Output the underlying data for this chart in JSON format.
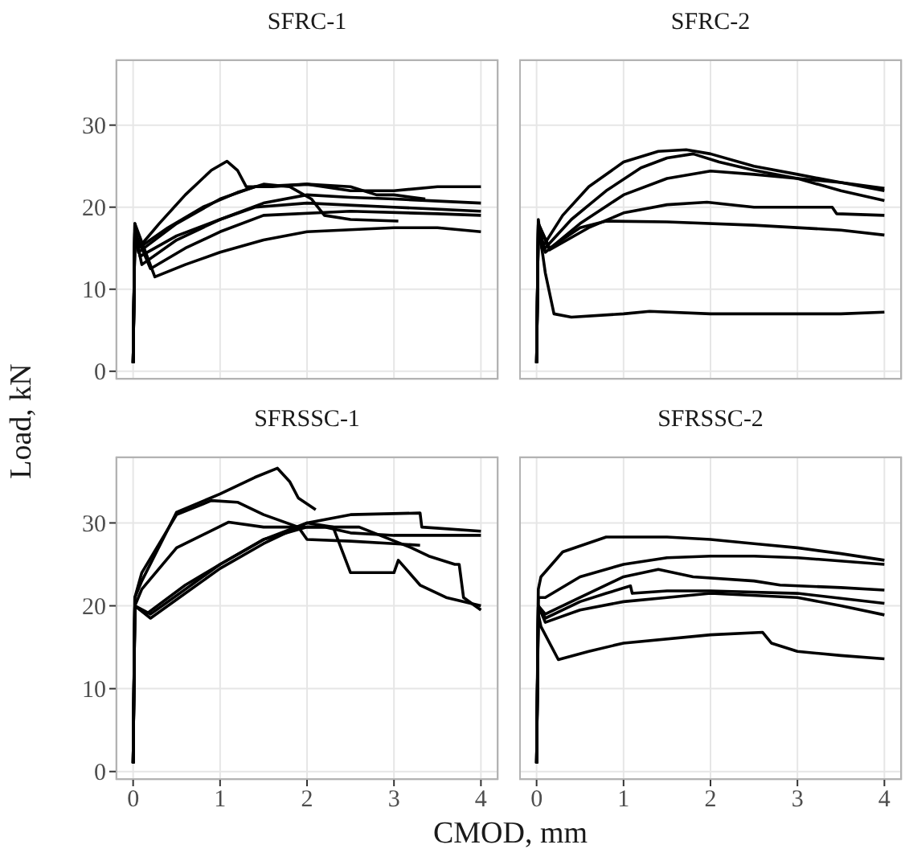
{
  "chart_data": [
    {
      "type": "line",
      "title": "SFRC-1",
      "ylabel": "Load, kN",
      "xlim": [
        -0.2,
        4.2
      ],
      "ylim": [
        -1,
        38
      ],
      "xticks": [
        0,
        1,
        2,
        3,
        4
      ],
      "yticks": [
        0,
        10,
        20,
        30
      ],
      "grid": true,
      "tick_labels": "y",
      "series": [
        {
          "color": "#000000",
          "x": [
            0,
            0.02,
            0.06,
            0.3,
            0.6,
            0.9,
            1.08,
            1.2,
            1.3,
            1.6,
            2.0,
            2.5,
            3.0,
            3.5,
            4.0
          ],
          "values": [
            1,
            18,
            15,
            18,
            21.5,
            24.5,
            25.6,
            24.5,
            22.5,
            22.5,
            22.8,
            22,
            22,
            22.5,
            22.5
          ]
        },
        {
          "color": "#000000",
          "x": [
            0,
            0.02,
            0.06,
            0.4,
            0.8,
            1.2,
            1.5,
            1.8,
            2.05,
            2.2,
            2.5,
            3.05
          ],
          "values": [
            1,
            17.5,
            15,
            17.5,
            20,
            21.8,
            22.8,
            22.5,
            21,
            19,
            18.5,
            18.3
          ]
        },
        {
          "color": "#000000",
          "x": [
            0,
            0.02,
            0.06,
            0.5,
            1.0,
            1.4,
            2.0,
            2.5,
            2.8,
            3.0,
            3.36
          ],
          "values": [
            1,
            17,
            14.5,
            18,
            21,
            22.5,
            22.8,
            22.5,
            21.5,
            21.5,
            21
          ]
        },
        {
          "color": "#000000",
          "x": [
            0,
            0.02,
            0.08,
            0.5,
            1.0,
            1.4,
            2.0,
            3.0,
            4.0
          ],
          "values": [
            1,
            17,
            14,
            16.5,
            18.5,
            20,
            20.5,
            20,
            19.5
          ]
        },
        {
          "color": "#000000",
          "x": [
            0,
            0.02,
            0.2,
            0.6,
            1.0,
            1.5,
            2.5,
            3.5,
            4.0
          ],
          "values": [
            1,
            17,
            12.5,
            15,
            17,
            19,
            19.5,
            19.2,
            19
          ]
        },
        {
          "color": "#000000",
          "x": [
            0,
            0.02,
            0.25,
            0.6,
            1.0,
            1.5,
            2.0,
            3.0,
            3.5,
            4.0
          ],
          "values": [
            1,
            18,
            11.5,
            13,
            14.5,
            16,
            17,
            17.5,
            17.5,
            17
          ]
        },
        {
          "color": "#000000",
          "x": [
            0,
            0.02,
            0.1,
            0.5,
            1.0,
            1.5,
            2.0,
            2.5,
            3.0,
            4.0
          ],
          "values": [
            1,
            17,
            13,
            16,
            18.5,
            20.5,
            21.5,
            21.2,
            21,
            20.5
          ]
        }
      ]
    },
    {
      "type": "line",
      "title": "SFRC-2",
      "xlim": [
        -0.2,
        4.2
      ],
      "ylim": [
        -1,
        38
      ],
      "xticks": [
        0,
        1,
        2,
        3,
        4
      ],
      "yticks": [
        0,
        10,
        20,
        30
      ],
      "grid": true,
      "tick_labels": false,
      "series": [
        {
          "color": "#000000",
          "x": [
            0,
            0.02,
            0.06,
            0.3,
            0.6,
            1.0,
            1.4,
            1.72,
            2.0,
            2.5,
            3.0,
            3.5,
            4.0
          ],
          "values": [
            1,
            18.5,
            15,
            19,
            22.5,
            25.5,
            26.8,
            27,
            26.5,
            25,
            24,
            23,
            22.3
          ]
        },
        {
          "color": "#000000",
          "x": [
            0,
            0.02,
            0.08,
            0.4,
            0.8,
            1.2,
            1.5,
            1.8,
            2.1,
            2.5,
            3.0,
            3.5,
            4.0
          ],
          "values": [
            1,
            18,
            14.8,
            18.5,
            22,
            24.8,
            26,
            26.5,
            25.5,
            24.5,
            23.5,
            22,
            20.8
          ]
        },
        {
          "color": "#000000",
          "x": [
            0,
            0.02,
            0.1,
            0.5,
            1.0,
            1.5,
            2.0,
            2.5,
            3.0,
            3.5,
            4.0
          ],
          "values": [
            1,
            18,
            14.5,
            18,
            21.5,
            23.5,
            24.4,
            24,
            23.5,
            23,
            22
          ]
        },
        {
          "color": "#000000",
          "x": [
            0,
            0.02,
            0.15,
            0.6,
            1.0,
            1.5,
            1.96,
            2.5,
            3.0,
            3.4,
            3.45,
            4.0
          ],
          "values": [
            1,
            18,
            14.8,
            17.5,
            19.3,
            20.3,
            20.6,
            20,
            20,
            20,
            19.2,
            19
          ]
        },
        {
          "color": "#000000",
          "x": [
            0,
            0.02,
            0.15,
            0.5,
            0.8,
            1.5,
            2.5,
            3.5,
            4.0
          ],
          "values": [
            1,
            18,
            15,
            17.5,
            18.3,
            18.2,
            17.8,
            17.2,
            16.6
          ]
        },
        {
          "color": "#000000",
          "x": [
            0,
            0.02,
            0.1,
            0.2,
            0.4,
            1.0,
            1.3,
            2.0,
            3.0,
            3.5,
            4.0
          ],
          "values": [
            1,
            18,
            12,
            7,
            6.6,
            7,
            7.3,
            7,
            7,
            7,
            7.2
          ]
        }
      ]
    },
    {
      "type": "line",
      "title": "SFRSSC-1",
      "xlabel": "CMOD, mm",
      "xlim": [
        -0.2,
        4.2
      ],
      "ylim": [
        -1,
        38
      ],
      "xticks": [
        0,
        1,
        2,
        3,
        4
      ],
      "yticks": [
        0,
        10,
        20,
        30
      ],
      "grid": true,
      "series": [
        {
          "color": "#000000",
          "x": [
            0,
            0.02,
            0.1,
            0.5,
            1.0,
            1.4,
            1.66,
            1.8,
            1.9,
            2.1
          ],
          "values": [
            1,
            21,
            23,
            31.3,
            33.5,
            35.5,
            36.6,
            35,
            33,
            31.6
          ]
        },
        {
          "color": "#000000",
          "x": [
            0,
            0.02,
            0.1,
            0.5,
            0.9,
            1.2,
            1.5,
            1.9,
            2.0,
            2.5,
            3.0,
            3.3
          ],
          "values": [
            1,
            21,
            24,
            31,
            32.7,
            32.5,
            31,
            29.5,
            28,
            27.8,
            27.5,
            27.3
          ]
        },
        {
          "color": "#000000",
          "x": [
            0,
            0.02,
            0.1,
            0.5,
            1.1,
            1.5,
            2.2,
            2.5,
            3.0,
            4.0
          ],
          "values": [
            1,
            20,
            22,
            27,
            30.1,
            29.5,
            29.5,
            28.8,
            28.5,
            28.5
          ]
        },
        {
          "color": "#000000",
          "x": [
            0,
            0.02,
            0.15,
            0.6,
            1.0,
            1.5,
            2.0,
            2.5,
            3.3,
            3.32,
            4.0
          ],
          "values": [
            1,
            20,
            19,
            22.5,
            25,
            28,
            30,
            31,
            31.2,
            29.5,
            29
          ]
        },
        {
          "color": "#000000",
          "x": [
            0,
            0.02,
            0.2,
            0.6,
            1.0,
            1.5,
            2.0,
            2.3,
            2.5,
            3.0,
            3.05,
            3.3,
            3.6,
            4.0
          ],
          "values": [
            1,
            20,
            18.5,
            21.5,
            24.5,
            27.5,
            30,
            29.5,
            24,
            24,
            25.5,
            22.5,
            21,
            20
          ]
        },
        {
          "color": "#000000",
          "x": [
            0,
            0.02,
            0.2,
            0.6,
            1.0,
            1.5,
            2.0,
            2.6,
            3.2,
            3.4,
            3.7,
            3.75,
            3.8,
            4.0
          ],
          "values": [
            1,
            20,
            19,
            22,
            25,
            28,
            29.5,
            29.5,
            27,
            26,
            25,
            25,
            21,
            19.5
          ]
        }
      ]
    },
    {
      "type": "line",
      "title": "SFRSSC-2",
      "xlim": [
        -0.2,
        4.2
      ],
      "ylim": [
        -1,
        38
      ],
      "xticks": [
        0,
        1,
        2,
        3,
        4
      ],
      "yticks": [
        0,
        10,
        20,
        30
      ],
      "grid": true,
      "tick_labels": "x",
      "series": [
        {
          "color": "#000000",
          "x": [
            0,
            0.02,
            0.05,
            0.3,
            0.8,
            1.5,
            2.0,
            2.5,
            3.0,
            3.5,
            4.0
          ],
          "values": [
            1,
            22,
            23.5,
            26.5,
            28.3,
            28.3,
            28,
            27.5,
            27,
            26.3,
            25.5
          ]
        },
        {
          "color": "#000000",
          "x": [
            0,
            0.02,
            0.1,
            0.5,
            1.0,
            1.5,
            2.0,
            2.5,
            3.0,
            4.0
          ],
          "values": [
            1,
            21,
            21,
            23.5,
            25,
            25.8,
            26,
            26,
            25.8,
            25
          ]
        },
        {
          "color": "#000000",
          "x": [
            0,
            0.02,
            0.1,
            0.5,
            1.0,
            1.4,
            1.8,
            2.5,
            2.8,
            3.5,
            4.0
          ],
          "values": [
            1,
            20,
            19,
            21,
            23.5,
            24.4,
            23.5,
            23,
            22.5,
            22.2,
            21.9
          ]
        },
        {
          "color": "#000000",
          "x": [
            0,
            0.02,
            0.1,
            0.5,
            0.8,
            1.08,
            1.1,
            1.5,
            2.0,
            3.0,
            4.0
          ],
          "values": [
            1,
            20,
            18.5,
            20.5,
            21.5,
            22.4,
            21.5,
            21.8,
            21.8,
            21.5,
            20.3
          ]
        },
        {
          "color": "#000000",
          "x": [
            0,
            0.02,
            0.1,
            0.5,
            1.0,
            1.5,
            2.0,
            3.0,
            3.5,
            4.0
          ],
          "values": [
            1,
            20,
            18,
            19.5,
            20.5,
            21,
            21.5,
            21,
            20,
            18.9
          ]
        },
        {
          "color": "#000000",
          "x": [
            0,
            0.02,
            0.05,
            0.25,
            0.6,
            1.0,
            2.0,
            2.6,
            2.7,
            3.0,
            3.5,
            4.0
          ],
          "values": [
            1,
            19,
            17.5,
            13.5,
            14.5,
            15.5,
            16.5,
            16.8,
            15.5,
            14.5,
            14,
            13.6
          ]
        }
      ]
    }
  ]
}
